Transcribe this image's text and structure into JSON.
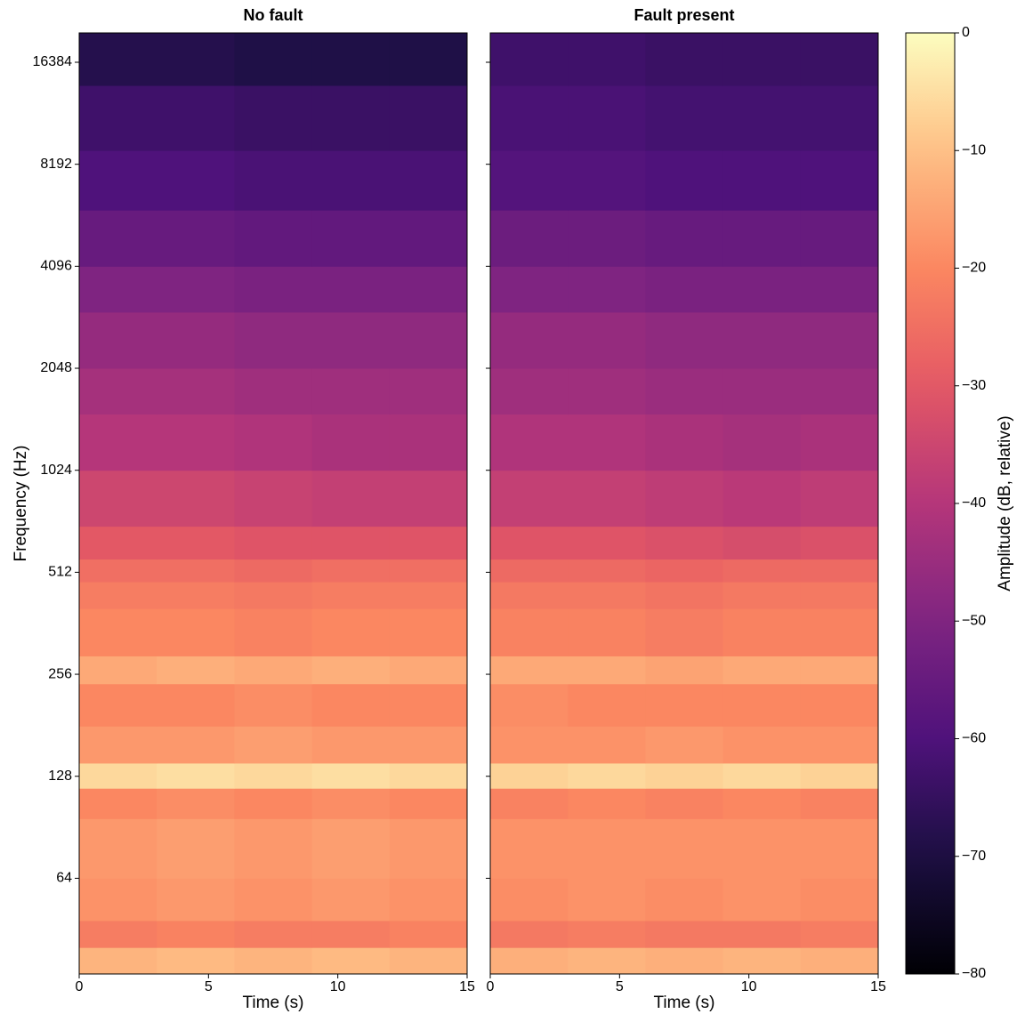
{
  "chart_data": {
    "type": "heatmap",
    "colormap": "magma",
    "yscale": "log",
    "xlabel": "Time (s)",
    "ylabel": "Frequency (Hz)",
    "colorbar_label": "Amplitude (dB, relative)",
    "xlim": [
      0,
      15
    ],
    "xticks": [
      0,
      5,
      10,
      15
    ],
    "ylim": [
      33.4,
      20000
    ],
    "yticks": [
      64,
      128,
      256,
      512,
      1024,
      2048,
      4096,
      8192,
      16384
    ],
    "zlim": [
      -80,
      0
    ],
    "zticks": [
      0,
      {
        "value": -10,
        "label": "−10"
      },
      {
        "value": -20,
        "label": "−20"
      },
      {
        "value": -30,
        "label": "−30"
      },
      {
        "value": -40,
        "label": "−40"
      },
      {
        "value": -50,
        "label": "−50"
      },
      {
        "value": -60,
        "label": "−60"
      },
      {
        "value": -70,
        "label": "−70"
      },
      {
        "value": -80,
        "label": "−80"
      }
    ],
    "x_edges": [
      0,
      3,
      6,
      9,
      12,
      15
    ],
    "y_edges": [
      33.4,
      40,
      48,
      64,
      96,
      118,
      140,
      180,
      240,
      290,
      400,
      480,
      560,
      700,
      1024,
      1500,
      2048,
      3000,
      4096,
      6000,
      9000,
      14000,
      20000
    ],
    "panels": [
      {
        "title": "No fault",
        "z": [
          [
            -12,
            -11,
            -12,
            -11,
            -12
          ],
          [
            -22,
            -21,
            -22,
            -22,
            -21
          ],
          [
            -18,
            -17,
            -18,
            -17,
            -18
          ],
          [
            -17,
            -16,
            -17,
            -16,
            -17
          ],
          [
            -20,
            -19,
            -20,
            -19,
            -20
          ],
          [
            -6,
            -5,
            -6,
            -5,
            -6
          ],
          [
            -17,
            -17,
            -16,
            -17,
            -17
          ],
          [
            -20,
            -20,
            -19,
            -20,
            -20
          ],
          [
            -14,
            -13,
            -14,
            -13,
            -14
          ],
          [
            -20,
            -20,
            -21,
            -20,
            -20
          ],
          [
            -22,
            -22,
            -23,
            -22,
            -22
          ],
          [
            -25,
            -25,
            -26,
            -25,
            -25
          ],
          [
            -30,
            -30,
            -31,
            -31,
            -31
          ],
          [
            -35,
            -35,
            -36,
            -37,
            -37
          ],
          [
            -40,
            -40,
            -41,
            -42,
            -42
          ],
          [
            -43,
            -43,
            -44,
            -44,
            -44
          ],
          [
            -46,
            -46,
            -47,
            -47,
            -47
          ],
          [
            -50,
            -50,
            -51,
            -51,
            -51
          ],
          [
            -55,
            -55,
            -56,
            -56,
            -56
          ],
          [
            -60,
            -60,
            -61,
            -61,
            -61
          ],
          [
            -63,
            -63,
            -64,
            -64,
            -64
          ],
          [
            -68,
            -68,
            -69,
            -69,
            -69
          ]
        ]
      },
      {
        "title": "Fault present",
        "z": [
          [
            -13,
            -12,
            -13,
            -12,
            -13
          ],
          [
            -23,
            -22,
            -23,
            -23,
            -22
          ],
          [
            -19,
            -18,
            -19,
            -18,
            -19
          ],
          [
            -18,
            -18,
            -18,
            -18,
            -18
          ],
          [
            -21,
            -20,
            -21,
            -20,
            -21
          ],
          [
            -7,
            -6,
            -7,
            -6,
            -7
          ],
          [
            -18,
            -18,
            -17,
            -18,
            -18
          ],
          [
            -19,
            -20,
            -20,
            -20,
            -20
          ],
          [
            -14,
            -14,
            -15,
            -14,
            -14
          ],
          [
            -21,
            -21,
            -22,
            -21,
            -21
          ],
          [
            -23,
            -23,
            -24,
            -23,
            -23
          ],
          [
            -26,
            -26,
            -27,
            -26,
            -26
          ],
          [
            -31,
            -31,
            -32,
            -33,
            -32
          ],
          [
            -37,
            -37,
            -38,
            -39,
            -38
          ],
          [
            -41,
            -41,
            -42,
            -43,
            -42
          ],
          [
            -44,
            -44,
            -45,
            -45,
            -45
          ],
          [
            -46,
            -46,
            -47,
            -47,
            -47
          ],
          [
            -50,
            -50,
            -51,
            -51,
            -51
          ],
          [
            -54,
            -54,
            -55,
            -55,
            -55
          ],
          [
            -59,
            -59,
            -60,
            -60,
            -60
          ],
          [
            -61,
            -61,
            -62,
            -62,
            -62
          ],
          [
            -63,
            -63,
            -64,
            -64,
            -64
          ]
        ]
      }
    ]
  }
}
